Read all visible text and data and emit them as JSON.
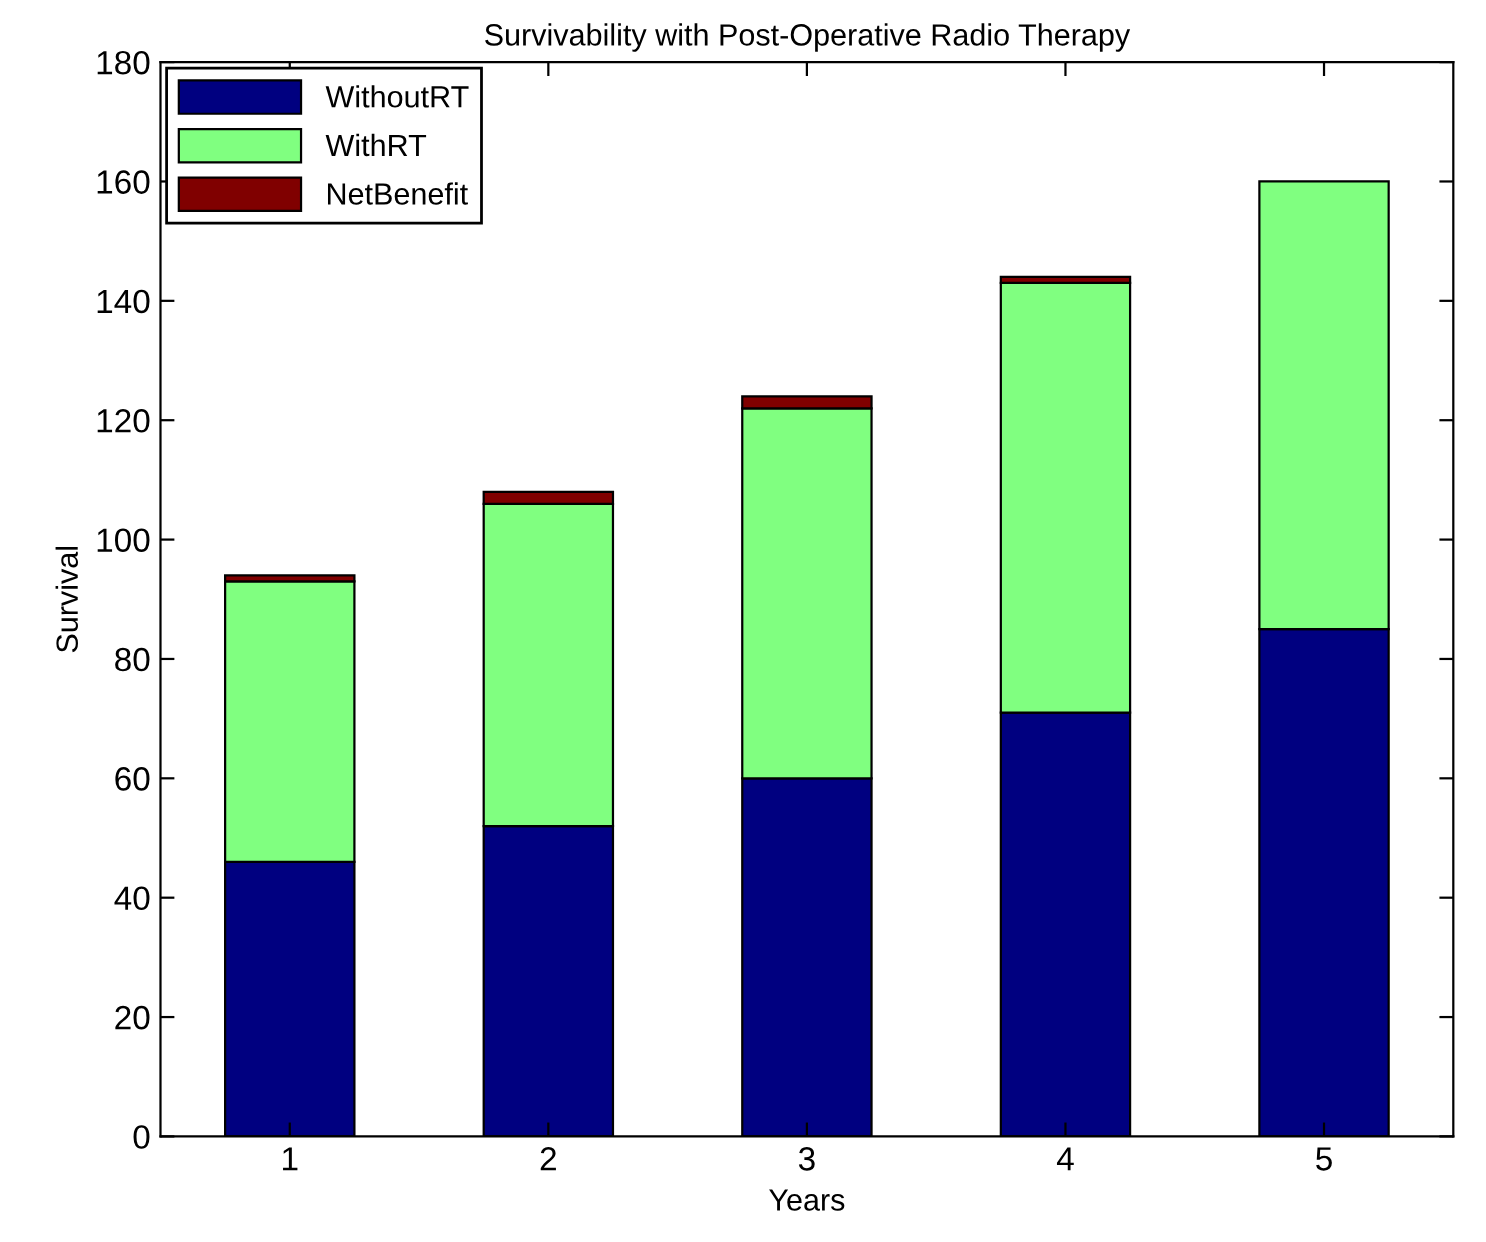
{
  "chart_data": {
    "type": "bar",
    "title": "Survivability with Post-Operative Radio Therapy",
    "xlabel": "Years",
    "ylabel": "Survival",
    "categories": [
      "1",
      "2",
      "3",
      "4",
      "5"
    ],
    "stacked": true,
    "series": [
      {
        "name": "WithoutRT",
        "color": "#000080",
        "values": [
          46,
          52,
          60,
          71,
          85
        ]
      },
      {
        "name": "WithRT",
        "color": "#80ff80",
        "values": [
          47,
          54,
          62,
          72,
          75
        ]
      },
      {
        "name": "NetBenefit",
        "color": "#800000",
        "values": [
          1,
          2,
          2,
          1,
          null
        ]
      }
    ],
    "ylim": [
      0,
      180
    ],
    "yticks": [
      0,
      20,
      40,
      60,
      80,
      100,
      120,
      140,
      160,
      180
    ],
    "grid": false,
    "legend": "top left"
  }
}
